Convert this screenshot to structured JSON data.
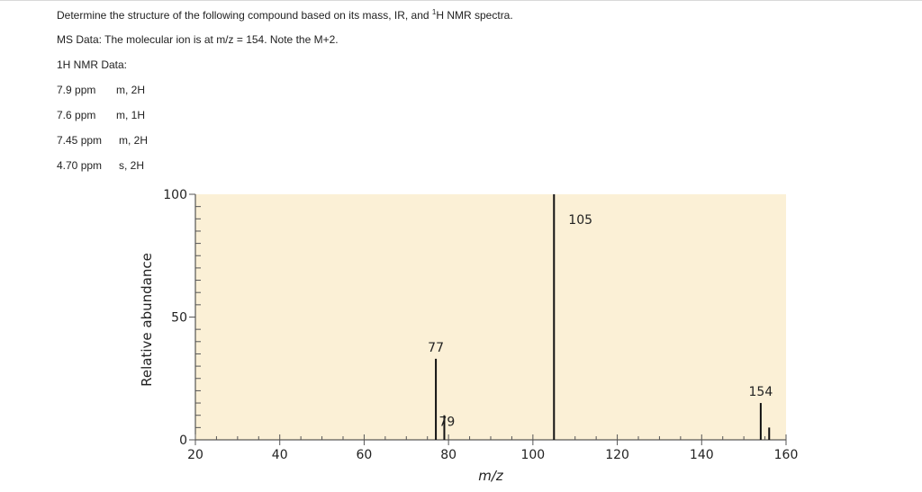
{
  "question": {
    "title_pre": "Determine the structure of the following compound based on its mass, IR, and ",
    "title_sup": "1",
    "title_post": "H NMR spectra.",
    "ms_line": "MS Data: The molecular ion is at m/z = 154.  Note the M+2.",
    "nmr_heading": "1H NMR Data:",
    "nmr_rows": [
      {
        "shift": "7.9 ppm",
        "mult": "m, 2H"
      },
      {
        "shift": "7.6 ppm",
        "mult": "m, 1H"
      },
      {
        "shift": "7.45 ppm",
        "mult": "m, 2H"
      },
      {
        "shift": "4.70 ppm",
        "mult": "s, 2H"
      }
    ]
  },
  "chart_data": {
    "type": "bar",
    "title": "",
    "xlabel": "m/z",
    "ylabel": "Relative abundance",
    "xlim": [
      20,
      160
    ],
    "ylim": [
      0,
      100
    ],
    "x_ticks": [
      20,
      40,
      60,
      80,
      100,
      120,
      140,
      160
    ],
    "y_ticks": [
      0,
      50,
      100
    ],
    "grid": false,
    "background": "#fbf0d6",
    "peaks": [
      {
        "mz": 77,
        "abundance": 33,
        "label": "77"
      },
      {
        "mz": 79,
        "abundance": 10,
        "label": "79"
      },
      {
        "mz": 105,
        "abundance": 100,
        "label": "105"
      },
      {
        "mz": 154,
        "abundance": 15,
        "label": "154"
      },
      {
        "mz": 156,
        "abundance": 5,
        "label": ""
      }
    ]
  }
}
